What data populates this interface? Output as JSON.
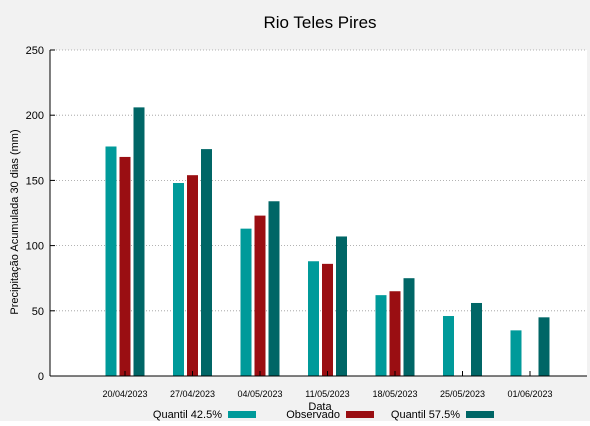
{
  "chart_data": {
    "type": "bar",
    "title": "Rio Teles Pires",
    "xlabel": "Data",
    "ylabel": "Precipitação Acumulada 30 dias (mm)",
    "ylim": [
      0,
      250
    ],
    "yticks": [
      0,
      50,
      100,
      150,
      200,
      250
    ],
    "grid": "horizontal-dotted",
    "legend_position": "bottom",
    "categories": [
      "20/04/2023",
      "27/04/2023",
      "04/05/2023",
      "11/05/2023",
      "18/05/2023",
      "25/05/2023",
      "01/06/2023"
    ],
    "series": [
      {
        "name": "Quantil 42.5%",
        "color": "#009a9a",
        "values": [
          176,
          148,
          113,
          88,
          62,
          46,
          35
        ]
      },
      {
        "name": "Observado",
        "color": "#9a0e12",
        "values": [
          168,
          154,
          123,
          86,
          65,
          null,
          null
        ]
      },
      {
        "name": "Quantil 57.5%",
        "color": "#006666",
        "values": [
          206,
          174,
          134,
          107,
          75,
          56,
          45
        ]
      }
    ]
  }
}
